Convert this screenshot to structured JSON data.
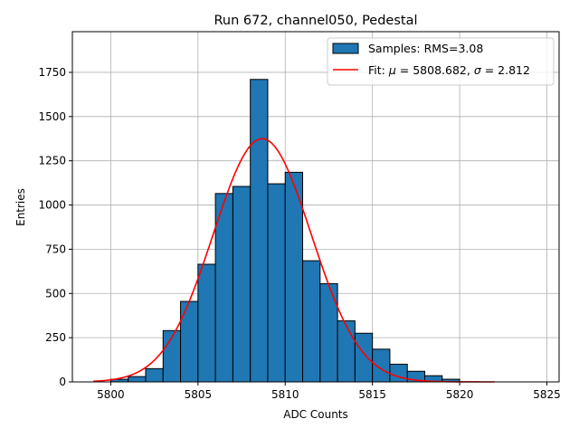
{
  "chart_data": {
    "type": "bar",
    "title": "Run 672, channel050, Pedestal",
    "xlabel": "ADC Counts",
    "ylabel": "Entries",
    "xlim": [
      5797.8,
      5825.7
    ],
    "ylim": [
      0,
      1980
    ],
    "grid": true,
    "legend_position": "top-right",
    "x_ticks": [
      5800,
      5805,
      5810,
      5815,
      5820,
      5825
    ],
    "y_ticks": [
      0,
      250,
      500,
      750,
      1000,
      1250,
      1500,
      1750
    ],
    "bin_width": 1,
    "histogram": {
      "name": "Samples: RMS=3.08",
      "color": "#1f77b4",
      "edge_color": "#000000",
      "bin_edges": [
        5800,
        5801,
        5802,
        5803,
        5804,
        5805,
        5806,
        5807,
        5808,
        5809,
        5810,
        5811,
        5812,
        5813,
        5814,
        5815,
        5816,
        5817,
        5818,
        5819,
        5820
      ],
      "counts": [
        15,
        30,
        75,
        290,
        455,
        665,
        1065,
        1105,
        1710,
        1120,
        1185,
        685,
        555,
        345,
        275,
        185,
        100,
        60,
        35,
        15
      ]
    },
    "fit": {
      "name_prefix": "Fit: ",
      "mu_symbol": "μ",
      "mu_text": " = 5808.682, ",
      "sigma_symbol": "σ",
      "sigma_text": " = 2.812",
      "mu": 5808.682,
      "sigma": 2.812,
      "amplitude": 1375,
      "x_range": [
        5799.0,
        5822.0
      ],
      "color": "#ff0000"
    }
  }
}
